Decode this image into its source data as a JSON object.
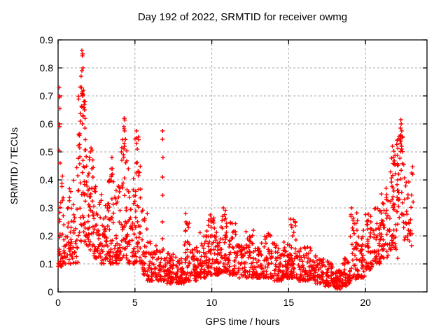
{
  "chart_data": {
    "type": "scatter",
    "title": "Day 192 of 2022, SRMTID for receiver owmg",
    "xlabel": "GPS time / hours",
    "ylabel": "SRMTID / TECUs",
    "series_name": "SRMTID",
    "marker": "plus",
    "marker_color": "#ff0000",
    "grid": "dashed",
    "grid_color": "#aaaaaa",
    "xlim": [
      0,
      24
    ],
    "ylim": [
      0,
      0.9
    ],
    "xticks": [
      0,
      5,
      10,
      15,
      20
    ],
    "xtick_labels": [
      "0",
      "5",
      "10",
      "15",
      "20"
    ],
    "yticks": [
      0,
      0.1,
      0.2,
      0.3,
      0.4,
      0.5,
      0.6,
      0.7,
      0.8,
      0.9
    ],
    "ytick_labels": [
      "0",
      "0.1",
      "0.2",
      "0.3",
      "0.4",
      "0.5",
      "0.6",
      "0.7",
      "0.8",
      "0.9"
    ],
    "bins_format": "[hour_start, hour_end, point_count, value_min, value_max, skew_toward_min]",
    "density_bins": [
      [
        0.0,
        0.3,
        30,
        0.09,
        0.45,
        1.6
      ],
      [
        0.3,
        0.8,
        35,
        0.1,
        0.38,
        1.8
      ],
      [
        0.8,
        1.3,
        40,
        0.1,
        0.45,
        1.7
      ],
      [
        1.3,
        1.8,
        60,
        0.18,
        0.74,
        1.2
      ],
      [
        1.8,
        2.3,
        50,
        0.15,
        0.52,
        1.5
      ],
      [
        2.3,
        2.8,
        45,
        0.12,
        0.38,
        1.5
      ],
      [
        2.8,
        3.3,
        45,
        0.1,
        0.36,
        1.5
      ],
      [
        3.3,
        3.7,
        40,
        0.1,
        0.48,
        1.7
      ],
      [
        3.7,
        4.1,
        40,
        0.1,
        0.38,
        1.6
      ],
      [
        4.1,
        4.5,
        45,
        0.12,
        0.62,
        1.8
      ],
      [
        4.5,
        5.0,
        45,
        0.1,
        0.46,
        1.6
      ],
      [
        5.0,
        5.4,
        40,
        0.1,
        0.58,
        1.8
      ],
      [
        5.4,
        5.8,
        30,
        0.06,
        0.3,
        1.8
      ],
      [
        5.8,
        6.4,
        45,
        0.04,
        0.18,
        1.6
      ],
      [
        6.4,
        7.0,
        45,
        0.04,
        0.16,
        1.6
      ],
      [
        7.0,
        7.6,
        50,
        0.03,
        0.14,
        1.5
      ],
      [
        7.6,
        8.2,
        50,
        0.03,
        0.13,
        1.5
      ],
      [
        8.2,
        8.6,
        40,
        0.04,
        0.28,
        2.2
      ],
      [
        8.6,
        9.2,
        45,
        0.04,
        0.16,
        1.6
      ],
      [
        9.2,
        9.7,
        45,
        0.05,
        0.22,
        1.8
      ],
      [
        9.7,
        10.2,
        45,
        0.06,
        0.28,
        1.9
      ],
      [
        10.2,
        10.6,
        40,
        0.06,
        0.22,
        1.8
      ],
      [
        10.6,
        11.1,
        45,
        0.07,
        0.3,
        1.9
      ],
      [
        11.1,
        11.6,
        45,
        0.06,
        0.26,
        1.9
      ],
      [
        11.6,
        12.2,
        45,
        0.05,
        0.17,
        1.6
      ],
      [
        12.2,
        12.8,
        45,
        0.05,
        0.22,
        1.8
      ],
      [
        12.8,
        13.4,
        45,
        0.05,
        0.18,
        1.7
      ],
      [
        13.4,
        14.0,
        45,
        0.05,
        0.21,
        1.8
      ],
      [
        14.0,
        14.6,
        45,
        0.04,
        0.18,
        1.7
      ],
      [
        14.6,
        15.0,
        40,
        0.05,
        0.18,
        1.7
      ],
      [
        15.0,
        15.5,
        45,
        0.05,
        0.26,
        2.0
      ],
      [
        15.5,
        16.1,
        45,
        0.04,
        0.16,
        1.6
      ],
      [
        16.1,
        16.7,
        45,
        0.04,
        0.16,
        1.6
      ],
      [
        16.7,
        17.3,
        45,
        0.03,
        0.13,
        1.5
      ],
      [
        17.3,
        17.9,
        45,
        0.02,
        0.11,
        1.5
      ],
      [
        17.9,
        18.5,
        50,
        0.01,
        0.08,
        1.4
      ],
      [
        18.5,
        19.0,
        40,
        0.02,
        0.12,
        1.5
      ],
      [
        19.0,
        19.5,
        40,
        0.04,
        0.3,
        2.2
      ],
      [
        19.5,
        20.0,
        40,
        0.05,
        0.22,
        1.8
      ],
      [
        20.0,
        20.5,
        42,
        0.08,
        0.28,
        1.6
      ],
      [
        20.5,
        21.0,
        42,
        0.1,
        0.3,
        1.5
      ],
      [
        21.0,
        21.5,
        42,
        0.12,
        0.38,
        1.5
      ],
      [
        21.5,
        22.0,
        45,
        0.15,
        0.52,
        1.5
      ],
      [
        22.0,
        22.5,
        48,
        0.2,
        0.56,
        1.3
      ],
      [
        22.5,
        23.1,
        30,
        0.18,
        0.45,
        1.4
      ]
    ],
    "outlier_points": [
      [
        0.07,
        0.73
      ],
      [
        0.1,
        0.7
      ],
      [
        0.09,
        0.695
      ],
      [
        0.12,
        0.655
      ],
      [
        0.08,
        0.6
      ],
      [
        0.11,
        0.59
      ],
      [
        0.07,
        0.505
      ],
      [
        0.13,
        0.46
      ],
      [
        1.55,
        0.862
      ],
      [
        1.6,
        0.85
      ],
      [
        1.58,
        0.843
      ],
      [
        1.62,
        0.8
      ],
      [
        1.55,
        0.79
      ],
      [
        1.5,
        0.77
      ],
      [
        1.52,
        0.73
      ],
      [
        1.65,
        0.72
      ],
      [
        1.6,
        0.7
      ],
      [
        1.68,
        0.68
      ],
      [
        1.55,
        0.66
      ],
      [
        1.72,
        0.65
      ],
      [
        1.63,
        0.63
      ],
      [
        1.58,
        0.6
      ],
      [
        1.75,
        0.585
      ],
      [
        2.1,
        0.5
      ],
      [
        2.05,
        0.48
      ],
      [
        2.2,
        0.44
      ],
      [
        3.5,
        0.48
      ],
      [
        3.45,
        0.44
      ],
      [
        4.3,
        0.62
      ],
      [
        4.28,
        0.59
      ],
      [
        4.32,
        0.575
      ],
      [
        4.3,
        0.53
      ],
      [
        4.25,
        0.49
      ],
      [
        5.1,
        0.575
      ],
      [
        5.12,
        0.55
      ],
      [
        5.1,
        0.53
      ],
      [
        5.15,
        0.51
      ],
      [
        5.08,
        0.46
      ],
      [
        5.2,
        0.43
      ],
      [
        6.8,
        0.575
      ],
      [
        6.8,
        0.545
      ],
      [
        6.82,
        0.48
      ],
      [
        6.8,
        0.41
      ],
      [
        6.81,
        0.345
      ],
      [
        6.79,
        0.25
      ],
      [
        6.8,
        0.19
      ],
      [
        8.3,
        0.28
      ],
      [
        8.32,
        0.25
      ],
      [
        8.3,
        0.22
      ],
      [
        9.9,
        0.275
      ],
      [
        9.95,
        0.25
      ],
      [
        10.75,
        0.3
      ],
      [
        10.7,
        0.27
      ],
      [
        12.7,
        0.22
      ],
      [
        13.8,
        0.2
      ],
      [
        15.1,
        0.26
      ],
      [
        15.15,
        0.24
      ],
      [
        19.1,
        0.3
      ],
      [
        19.05,
        0.27
      ],
      [
        22.3,
        0.615
      ],
      [
        22.32,
        0.6
      ],
      [
        22.28,
        0.585
      ],
      [
        22.35,
        0.575
      ],
      [
        22.3,
        0.56
      ],
      [
        22.25,
        0.53
      ],
      [
        21.75,
        0.52
      ],
      [
        21.8,
        0.48
      ],
      [
        22.1,
        0.12
      ],
      [
        23.0,
        0.165
      ]
    ]
  }
}
